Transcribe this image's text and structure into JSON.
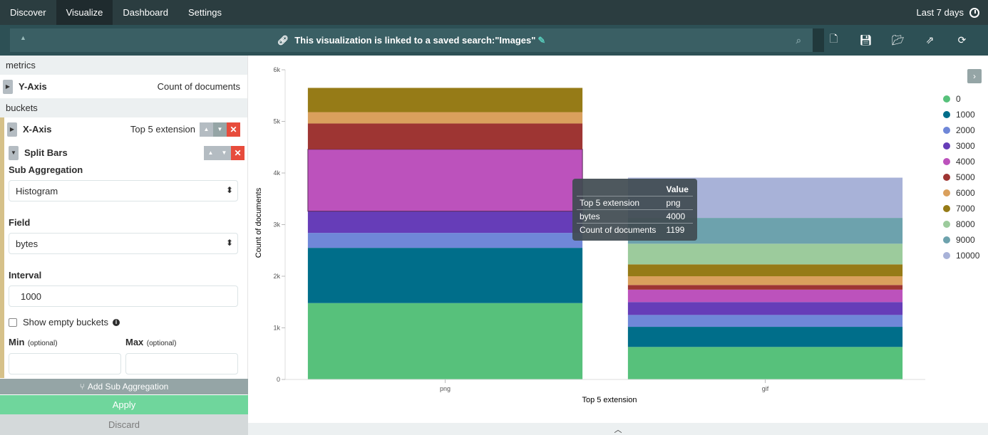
{
  "nav": {
    "tabs": [
      "Discover",
      "Visualize",
      "Dashboard",
      "Settings"
    ],
    "active": "Visualize",
    "time_range": "Last 7 days"
  },
  "search": {
    "linked_prefix": "This visualization is linked to a saved search: ",
    "saved_search_name": "\"Images\""
  },
  "sidebar": {
    "metrics_header": "metrics",
    "y_axis_label": "Y-Axis",
    "y_axis_summary": "Count of documents",
    "buckets_header": "buckets",
    "x_axis_label": "X-Axis",
    "x_axis_summary": "Top 5 extension",
    "split_label": "Split Bars",
    "sub_agg_label": "Sub Aggregation",
    "sub_agg_value": "Histogram",
    "field_label": "Field",
    "field_value": "bytes",
    "interval_label": "Interval",
    "interval_value": "1000",
    "show_empty_label": "Show empty buckets",
    "min_label": "Min",
    "max_label": "Max",
    "optional_text": "(optional)",
    "add_sub_label": "Add Sub Aggregation",
    "apply_label": "Apply",
    "discard_label": "Discard"
  },
  "tooltip": {
    "header": "Value",
    "rows": [
      {
        "key": "Top 5 extension",
        "value": "png"
      },
      {
        "key": "bytes",
        "value": "4000"
      },
      {
        "key": "Count of documents",
        "value": "1199"
      }
    ]
  },
  "chart_data": {
    "type": "bar",
    "stacked": true,
    "categories": [
      "png",
      "gif"
    ],
    "xlabel": "Top 5 extension",
    "ylabel": "Count of documents",
    "ylim": [
      0,
      6000
    ],
    "yticks": [
      0,
      1000,
      2000,
      3000,
      4000,
      5000,
      6000
    ],
    "ytick_labels": [
      "0",
      "1k",
      "2k",
      "3k",
      "4k",
      "5k",
      "6k"
    ],
    "legend_position": "right",
    "series": [
      {
        "name": "0",
        "color": "#57c17b",
        "values": [
          1480,
          630
        ]
      },
      {
        "name": "1000",
        "color": "#006e8a",
        "values": [
          1070,
          390
        ]
      },
      {
        "name": "2000",
        "color": "#6f87d8",
        "values": [
          290,
          230
        ]
      },
      {
        "name": "3000",
        "color": "#663db8",
        "values": [
          420,
          250
        ]
      },
      {
        "name": "4000",
        "color": "#bc52bc",
        "values": [
          1199,
          240
        ]
      },
      {
        "name": "5000",
        "color": "#9e3533",
        "values": [
          500,
          90
        ]
      },
      {
        "name": "6000",
        "color": "#daa05d",
        "values": [
          220,
          170
        ]
      },
      {
        "name": "7000",
        "color": "#967b17",
        "values": [
          470,
          230
        ]
      },
      {
        "name": "8000",
        "color": "#9ccb9c",
        "values": [
          0,
          400
        ]
      },
      {
        "name": "9000",
        "color": "#6da2ad",
        "values": [
          0,
          500
        ]
      },
      {
        "name": "10000",
        "color": "#a8b2d8",
        "values": [
          0,
          780
        ]
      }
    ],
    "highlight": {
      "category": "png",
      "series": "4000"
    }
  }
}
